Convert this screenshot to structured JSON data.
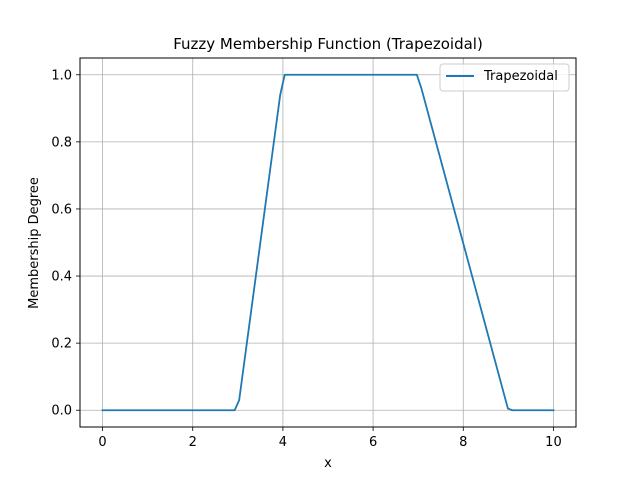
{
  "chart_data": {
    "type": "line",
    "title": "Fuzzy Membership Function (Trapezoidal)",
    "xlabel": "x",
    "ylabel": "Membership Degree",
    "xlim": [
      -0.5,
      10.5
    ],
    "ylim": [
      -0.05,
      1.05
    ],
    "x_ticks": [
      0,
      2,
      4,
      6,
      8,
      10
    ],
    "y_ticks": [
      0.0,
      0.2,
      0.4,
      0.6,
      0.8,
      1.0
    ],
    "x_tick_labels": [
      "0",
      "2",
      "4",
      "6",
      "8",
      "10"
    ],
    "y_tick_labels": [
      "0.0",
      "0.2",
      "0.4",
      "0.6",
      "0.8",
      "1.0"
    ],
    "grid": true,
    "legend_position": "top-right",
    "series": [
      {
        "name": "Trapezoidal",
        "color": "#1f77b4",
        "x": [
          0,
          2.93,
          3.03,
          3.94,
          4.04,
          6.97,
          7.07,
          8.99,
          9.09,
          10
        ],
        "y": [
          0,
          0,
          0.03,
          0.94,
          1.0,
          1.0,
          0.96,
          0.005,
          0,
          0
        ]
      }
    ]
  }
}
